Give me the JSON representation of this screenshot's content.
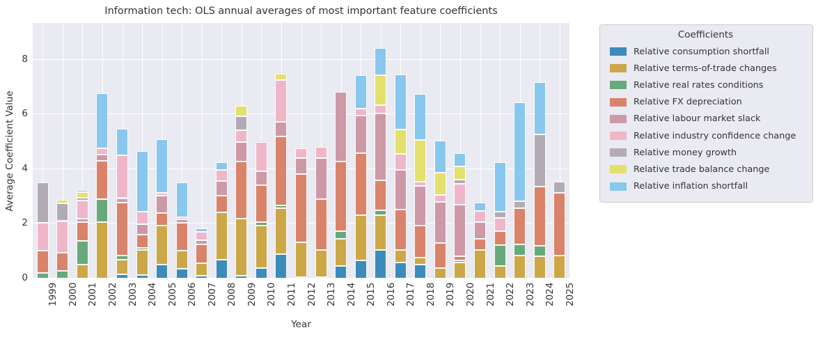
{
  "title": "Information tech: OLS annual averages of most important feature coefficients",
  "axes": {
    "xlabel": "Year",
    "ylabel": "Average Coefficient Value",
    "yticks": [
      0,
      2,
      4,
      6,
      8
    ],
    "ymax": 9.34
  },
  "legend": {
    "title": "Coefficients"
  },
  "chart_data": {
    "type": "bar",
    "stacked": true,
    "title": "Information tech: OLS annual averages of most important feature coefficients",
    "xlabel": "Year",
    "ylabel": "Average Coefficient Value",
    "ylim": [
      0,
      9.34
    ],
    "grid": true,
    "legend_position": "right",
    "legend_title": "Coefficients",
    "categories": [
      "1999",
      "2000",
      "2001",
      "2002",
      "2003",
      "2004",
      "2005",
      "2006",
      "2007",
      "2008",
      "2009",
      "2010",
      "2011",
      "2012",
      "2013",
      "2014",
      "2015",
      "2016",
      "2017",
      "2018",
      "2019",
      "2020",
      "2021",
      "2022",
      "2023",
      "2024",
      "2025"
    ],
    "series": [
      {
        "name": "Relative consumption shortfall",
        "color": "#3d8bba",
        "values": [
          0,
          0,
          0,
          0,
          0.16,
          0.12,
          0.5,
          0.35,
          0.1,
          0.7,
          0.1,
          0.39,
          0.88,
          0.05,
          0.05,
          0.45,
          0.67,
          1.05,
          0.58,
          0.5,
          0,
          0,
          0,
          0,
          0,
          0,
          0
        ]
      },
      {
        "name": "Relative terms-of-trade changes",
        "color": "#cba747",
        "values": [
          0,
          0,
          0.52,
          2.07,
          0.52,
          0.93,
          1.44,
          0.66,
          0.45,
          1.73,
          2.1,
          1.54,
          1.68,
          1.27,
          1.0,
          1.0,
          1.65,
          1.27,
          0.46,
          0.26,
          0.38,
          0.58,
          1.05,
          0.46,
          0.84,
          0.82,
          0.84
        ]
      },
      {
        "name": "Relative real rates conditions",
        "color": "#68a97c",
        "values": [
          0.2,
          0.27,
          0.85,
          0.82,
          0.15,
          0.07,
          0,
          0,
          0,
          0,
          0,
          0.13,
          0.12,
          0,
          0,
          0.29,
          0,
          0.17,
          0,
          0,
          0,
          0.09,
          0,
          0.76,
          0.42,
          0.38,
          0
        ]
      },
      {
        "name": "Relative FX depreciation",
        "color": "#d8836a",
        "values": [
          0.83,
          0.67,
          0.68,
          1.42,
          1.94,
          0.48,
          0.46,
          1.02,
          0.7,
          0.59,
          2.08,
          1.35,
          2.5,
          2.49,
          1.84,
          2.54,
          2.25,
          1.1,
          1.48,
          1.18,
          0.91,
          0.14,
          0.4,
          0.51,
          1.31,
          2.16,
          2.28
        ]
      },
      {
        "name": "Relative labour market slack",
        "color": "#cd99a6",
        "values": [
          0,
          0,
          0.13,
          0.21,
          0.17,
          0.38,
          0.62,
          0.13,
          0.15,
          0.55,
          0.72,
          0.51,
          0.54,
          0.59,
          1.52,
          2.54,
          1.39,
          2.45,
          1.44,
          1.44,
          1.52,
          1.9,
          0.62,
          0,
          0,
          0,
          0
        ]
      },
      {
        "name": "Relative industry confidence change",
        "color": "#efb6ca",
        "values": [
          1.01,
          1.16,
          0.68,
          0.25,
          1.57,
          0.47,
          0.12,
          0.09,
          0.3,
          0.41,
          0.42,
          1.06,
          1.53,
          0.37,
          0.4,
          0,
          0.26,
          0.3,
          0.59,
          0.17,
          0.24,
          0.76,
          0.4,
          0.48,
          0,
          0,
          0
        ]
      },
      {
        "name": "Relative money growth",
        "color": "#b3abb4",
        "values": [
          1.48,
          0.66,
          0.08,
          0,
          0,
          0,
          0,
          0,
          0,
          0,
          0.51,
          0,
          0,
          0,
          0,
          0,
          0,
          0,
          0,
          0,
          0,
          0.15,
          0,
          0.23,
          0.26,
          1.92,
          0.43
        ]
      },
      {
        "name": "Relative trade balance change",
        "color": "#e3e06c",
        "values": [
          0,
          0.12,
          0.21,
          0,
          0,
          0,
          0,
          0,
          0,
          0,
          0.39,
          0,
          0.24,
          0,
          0,
          0,
          0,
          1.1,
          0.89,
          1.52,
          0.82,
          0.47,
          0,
          0,
          0,
          0,
          0
        ]
      },
      {
        "name": "Relative inflation shortfall",
        "color": "#88c7ee",
        "values": [
          0,
          0,
          0.09,
          1.99,
          0.97,
          2.2,
          1.95,
          1.25,
          0.13,
          0.28,
          0,
          0,
          0,
          0,
          0,
          0,
          1.22,
          0.99,
          2.03,
          1.67,
          1.18,
          0.48,
          0.3,
          1.82,
          3.62,
          1.9,
          0
        ]
      }
    ]
  }
}
